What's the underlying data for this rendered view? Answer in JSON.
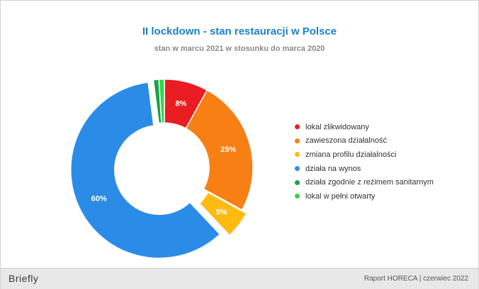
{
  "chart_data": {
    "type": "pie",
    "title": "II lockdown - stan restauracji w Polsce",
    "subtitle": "stan w marcu 2021 w stosunku do marca 2020",
    "categories": [
      "lokal zlikwidowany",
      "zawieszona działalność",
      "zmiana profilu działalności",
      "działa na wynos",
      "działa zgodnie z reżimem sanitarnym",
      "lokal w pełni otwarty"
    ],
    "values": [
      8,
      25,
      5,
      60,
      1,
      1
    ],
    "data_labels": [
      "8%",
      "25%",
      "5%",
      "60%",
      "",
      ""
    ],
    "colors": [
      "#ea1d22",
      "#f87f14",
      "#fdbb12",
      "#2b8ce8",
      "#1aa148",
      "#33d64a"
    ],
    "donut": true,
    "exploded": [
      false,
      false,
      true,
      true,
      false,
      false
    ],
    "legend_position": "right"
  },
  "footer": {
    "brand": "Briefly",
    "report": "Raport HORECA | czerwiec 2022"
  }
}
